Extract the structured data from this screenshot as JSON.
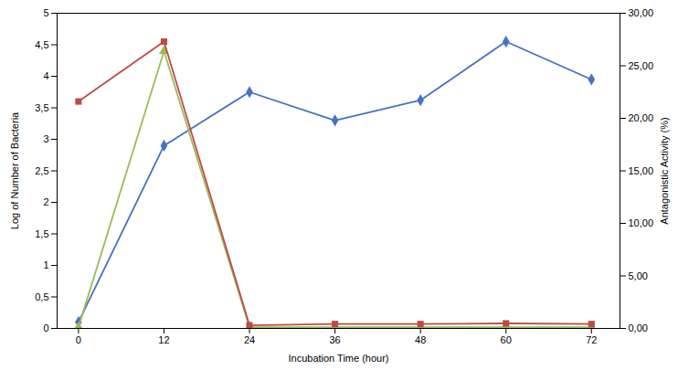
{
  "chart_data": {
    "type": "line",
    "xlabel": "Incubation Time (hour)",
    "ylabel": "Log of Number of Bacteria",
    "y2label": "Antagonistic Activity (%)",
    "x": [
      0,
      12,
      24,
      36,
      48,
      60,
      72
    ],
    "xlim": [
      -3,
      76
    ],
    "xticks": [
      0,
      12,
      24,
      36,
      48,
      60,
      72
    ],
    "ylim": [
      0,
      5
    ],
    "yticks": [
      0,
      {
        "value": 0.5,
        "label": "0,5"
      },
      1,
      {
        "value": 1.5,
        "label": "1,5"
      },
      2,
      {
        "value": 2.5,
        "label": "2,5"
      },
      3,
      {
        "value": 3.5,
        "label": "3,5"
      },
      4,
      {
        "value": 4.5,
        "label": "4,5"
      },
      5
    ],
    "y2lim": [
      0,
      30
    ],
    "y2ticks": [
      {
        "value": 0,
        "label": "0,00"
      },
      {
        "value": 5,
        "label": "5,00"
      },
      {
        "value": 10,
        "label": "10,00"
      },
      {
        "value": 15,
        "label": "15,00"
      },
      {
        "value": 20,
        "label": "20,00"
      },
      {
        "value": 25,
        "label": "25,00"
      },
      {
        "value": 30,
        "label": "30,00"
      }
    ],
    "grid": false,
    "series": [
      {
        "color": "#4472C4",
        "marker": "diamond",
        "values": [
          0.1,
          2.9,
          3.75,
          3.3,
          3.62,
          4.55,
          3.95
        ]
      },
      {
        "color": "#9BBB59",
        "marker": "triangle",
        "values": [
          0.02,
          4.4,
          0.02,
          0.02,
          0.02,
          0.02,
          0.02
        ]
      },
      {
        "color": "#BE4B48",
        "marker": "square",
        "axis": "y2",
        "values": [
          21.6,
          27.3,
          0.3,
          0.42,
          0.42,
          0.48,
          0.42
        ]
      }
    ]
  }
}
